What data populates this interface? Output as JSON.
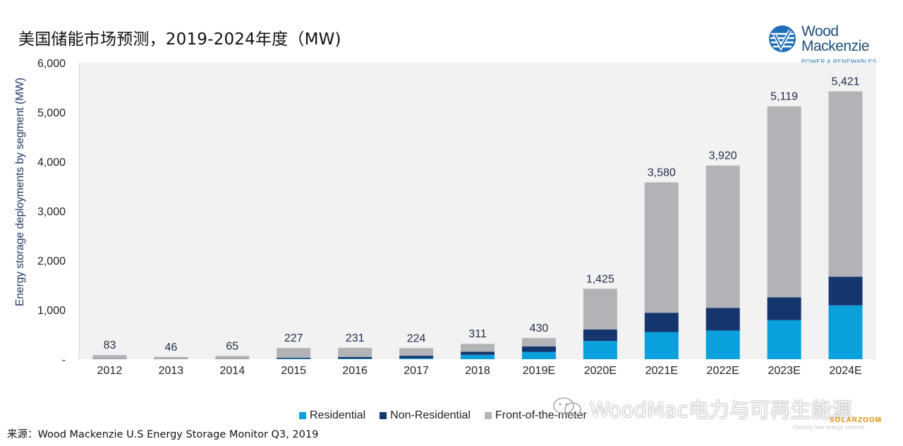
{
  "title": "美国储能市场预测，2019-2024年度（MW)",
  "logo": {
    "line1": "Wood",
    "line2": "Mackenzie",
    "sub": "POWER & RENEWABLES",
    "icon": "wood-mackenzie-logo-icon"
  },
  "colors": {
    "residential": "#0aa0dc",
    "non_residential": "#15366d",
    "front_of_meter": "#b1b3b6",
    "plot_bg": "#f2f2f2",
    "total_label": "#1f2d4a"
  },
  "chart_data": {
    "type": "bar",
    "stacked": true,
    "categories": [
      "2012",
      "2013",
      "2014",
      "2015",
      "2016",
      "2017",
      "2018",
      "2019E",
      "2020E",
      "2021E",
      "2022E",
      "2023E",
      "2024E"
    ],
    "series": [
      {
        "name": "Residential",
        "values": [
          0,
          0,
          0,
          10,
          12,
          20,
          90,
          150,
          370,
          550,
          580,
          790,
          1090
        ]
      },
      {
        "name": "Non-Residential",
        "values": [
          5,
          5,
          5,
          20,
          32,
          50,
          60,
          110,
          230,
          390,
          460,
          460,
          580
        ]
      },
      {
        "name": "Front-of-the-meter",
        "values": [
          78,
          41,
          60,
          197,
          187,
          154,
          161,
          170,
          825,
          2640,
          2880,
          3869,
          3751
        ]
      }
    ],
    "totals": [
      83,
      46,
      65,
      227,
      231,
      224,
      311,
      430,
      1425,
      3580,
      3920,
      5119,
      5421
    ],
    "total_labels": [
      "83",
      "46",
      "65",
      "227",
      "231",
      "224",
      "311",
      "430",
      "1,425",
      "3,580",
      "3,920",
      "5,119",
      "5,421"
    ],
    "ylabel": "Energy storage deployments by segment (MW)",
    "xlabel": "",
    "ylim": [
      0,
      6000
    ],
    "yticks": [
      0,
      1000,
      2000,
      3000,
      4000,
      5000,
      6000
    ],
    "ytick_labels": [
      "-",
      "1,000",
      "2,000",
      "3,000",
      "4,000",
      "5,000",
      "6,000"
    ],
    "grid": false,
    "legend_position": "bottom"
  },
  "source": "来源：Wood Mackenzie U.S Energy Storage Monitor Q3, 2019",
  "watermark": {
    "text": "WoodMac电力与可再生能源",
    "brand": "SOLARZOOM",
    "sub": "Century new energy network",
    "icon": "wechat-icon"
  }
}
